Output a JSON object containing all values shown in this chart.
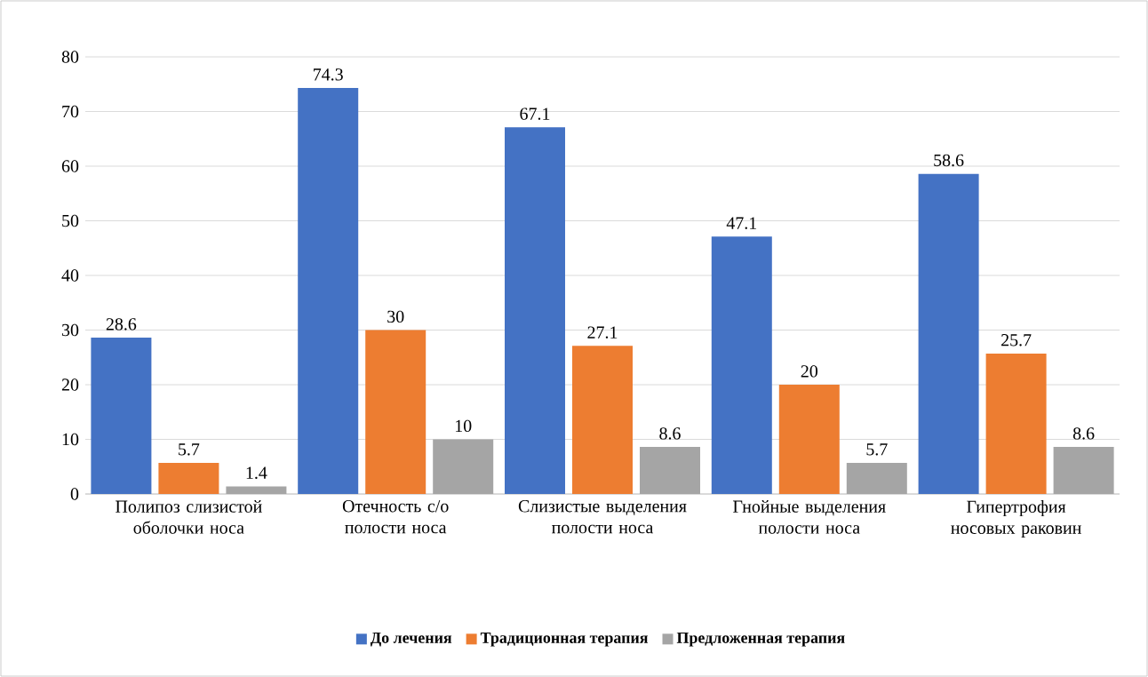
{
  "chart_data": {
    "type": "bar",
    "categories": [
      "Полипоз слизистой оболочки носа",
      "Отечность с/о полости носа",
      "Слизистые выделения полости носа",
      "Гнойные выделения полости носа",
      "Гипертрофия носовых раковин"
    ],
    "series": [
      {
        "name": "До лечения",
        "color": "#4472c4",
        "values": [
          28.6,
          74.3,
          67.1,
          47.1,
          58.6
        ]
      },
      {
        "name": "Традиционная терапия",
        "color": "#ed7d31",
        "values": [
          5.7,
          30,
          27.1,
          20,
          25.7
        ]
      },
      {
        "name": "Предложенная терапия",
        "color": "#a5a5a5",
        "values": [
          1.4,
          10,
          8.6,
          5.7,
          8.6
        ]
      }
    ],
    "ylim": [
      0,
      80
    ],
    "yticks": [
      0,
      10,
      20,
      30,
      40,
      50,
      60,
      70,
      80
    ],
    "grid": "y",
    "legend": "bottom",
    "data_labels": true
  }
}
